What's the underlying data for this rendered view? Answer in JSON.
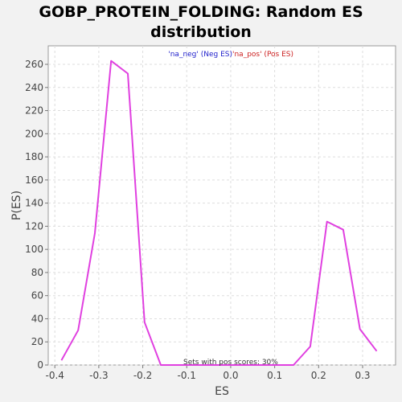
{
  "chart_data": {
    "type": "line",
    "title": "GOBP_PROTEIN_FOLDING: Random ES distribution",
    "xlabel": "ES",
    "ylabel": "P(ES)",
    "xlim": [
      -0.415,
      0.375
    ],
    "ylim": [
      0,
      276
    ],
    "xticks": [
      "-0.4",
      "-0.3",
      "-0.2",
      "-0.1",
      "0.0",
      "0.1",
      "0.2",
      "0.3"
    ],
    "xtick_values": [
      -0.4,
      -0.3,
      -0.2,
      -0.1,
      0.0,
      0.1,
      0.2,
      0.3
    ],
    "yticks": [
      "0",
      "20",
      "40",
      "60",
      "80",
      "100",
      "120",
      "140",
      "160",
      "180",
      "200",
      "220",
      "240",
      "260"
    ],
    "ytick_values": [
      0,
      20,
      40,
      60,
      80,
      100,
      120,
      140,
      160,
      180,
      200,
      220,
      240,
      260
    ],
    "grid": true,
    "legend": {
      "placement": "top-center",
      "entries": [
        {
          "text": "'na_neg' (Neg ES)",
          "color": "#2222cc"
        },
        {
          "text": "'na_pos' (Pos ES)",
          "color": "#cc2222"
        }
      ]
    },
    "annotation": "Sets with pos scores: 30%",
    "series": [
      {
        "color": "#e040e0",
        "x": [
          -0.385,
          -0.347,
          -0.309,
          -0.272,
          -0.234,
          -0.196,
          -0.159,
          -0.121,
          -0.083,
          -0.046,
          -0.008,
          0.03,
          0.068,
          0.105,
          0.143,
          0.181,
          0.219,
          0.256,
          0.294,
          0.332
        ],
        "y": [
          4,
          30,
          114,
          263,
          252,
          37,
          0,
          0,
          0,
          0,
          0,
          0,
          0,
          0,
          0,
          16,
          124,
          117,
          31,
          12
        ]
      }
    ]
  }
}
